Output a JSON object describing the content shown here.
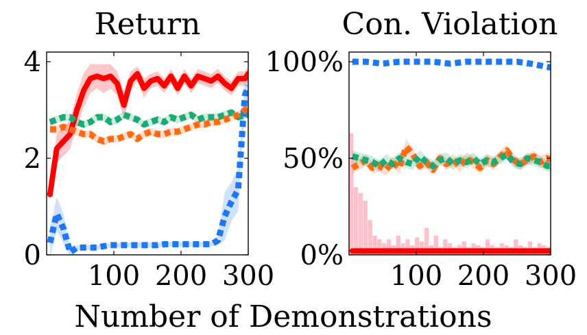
{
  "figure": {
    "xlabel": "Number of Demonstrations"
  },
  "chart_data": [
    {
      "type": "line",
      "title": "Return",
      "xlim": [
        0,
        300
      ],
      "ylim": [
        0,
        4.2
      ],
      "xticks": [
        100,
        200,
        300
      ],
      "yticks": [
        0,
        2,
        4
      ],
      "xtick_labels": [
        "100",
        "200",
        "300"
      ],
      "ytick_labels": [
        "0",
        "2",
        "4"
      ],
      "grid": false,
      "series": [
        {
          "color": "#ff0000",
          "style": "solid",
          "x": [
            5,
            15,
            25,
            35,
            45,
            55,
            65,
            75,
            85,
            95,
            105,
            115,
            125,
            135,
            145,
            155,
            165,
            175,
            185,
            195,
            205,
            215,
            225,
            235,
            245,
            255,
            265,
            275,
            285,
            295,
            300
          ],
          "y": [
            1.25,
            2.2,
            2.35,
            2.5,
            3.0,
            3.4,
            3.65,
            3.7,
            3.65,
            3.7,
            3.55,
            3.1,
            3.6,
            3.75,
            3.45,
            3.6,
            3.65,
            3.5,
            3.7,
            3.45,
            3.7,
            3.5,
            3.7,
            3.65,
            3.6,
            3.7,
            3.55,
            3.45,
            3.65,
            3.65,
            3.75
          ],
          "band": [
            0.15,
            0.3,
            0.3,
            0.3,
            0.35,
            0.35,
            0.3,
            0.25,
            0.3,
            0.25,
            0.25,
            0.3,
            0.2,
            0.15,
            0.2,
            0.15,
            0.15,
            0.15,
            0.15,
            0.15,
            0.15,
            0.15,
            0.15,
            0.15,
            0.15,
            0.15,
            0.15,
            0.15,
            0.15,
            0.15,
            0.15
          ]
        },
        {
          "color": "#1f77f4",
          "style": "dotted",
          "x": [
            5,
            15,
            25,
            35,
            45,
            55,
            65,
            75,
            85,
            95,
            105,
            115,
            125,
            135,
            145,
            155,
            165,
            175,
            185,
            195,
            205,
            215,
            225,
            235,
            245,
            255,
            265,
            275,
            285,
            295,
            300
          ],
          "y": [
            0.25,
            0.85,
            0.55,
            0.05,
            0.15,
            0.15,
            0.15,
            0.15,
            0.18,
            0.2,
            0.2,
            0.2,
            0.2,
            0.2,
            0.2,
            0.2,
            0.2,
            0.22,
            0.22,
            0.22,
            0.22,
            0.22,
            0.22,
            0.22,
            0.22,
            0.3,
            0.8,
            1.1,
            1.35,
            3.3,
            3.5
          ],
          "band": [
            0.3,
            0.35,
            0.3,
            0.1,
            0.05,
            0.05,
            0.05,
            0.05,
            0.05,
            0.05,
            0.05,
            0.05,
            0.05,
            0.05,
            0.05,
            0.05,
            0.05,
            0.05,
            0.05,
            0.05,
            0.05,
            0.05,
            0.05,
            0.05,
            0.05,
            0.1,
            0.5,
            0.4,
            0.45,
            0.3,
            0.3
          ]
        },
        {
          "color": "#1aaa72",
          "style": "dotted",
          "x": [
            5,
            15,
            25,
            35,
            45,
            55,
            65,
            75,
            85,
            95,
            105,
            115,
            125,
            135,
            145,
            155,
            165,
            175,
            185,
            195,
            205,
            215,
            225,
            235,
            245,
            255,
            265,
            275,
            285,
            295,
            300
          ],
          "y": [
            2.75,
            2.8,
            2.85,
            2.85,
            2.75,
            2.7,
            2.75,
            2.85,
            2.85,
            2.75,
            2.8,
            2.9,
            2.85,
            2.8,
            2.7,
            2.75,
            2.8,
            2.75,
            2.85,
            2.8,
            2.85,
            2.9,
            2.8,
            2.85,
            2.85,
            2.85,
            2.9,
            2.95,
            2.85,
            2.9,
            2.9
          ],
          "band": [
            0.08,
            0.08,
            0.08,
            0.08,
            0.08,
            0.08,
            0.08,
            0.08,
            0.08,
            0.08,
            0.08,
            0.08,
            0.08,
            0.08,
            0.08,
            0.08,
            0.08,
            0.08,
            0.08,
            0.08,
            0.08,
            0.08,
            0.08,
            0.08,
            0.08,
            0.08,
            0.08,
            0.08,
            0.08,
            0.08,
            0.08
          ]
        },
        {
          "color": "#ff6a13",
          "style": "dotted",
          "x": [
            5,
            15,
            25,
            35,
            45,
            55,
            65,
            75,
            85,
            95,
            105,
            115,
            125,
            135,
            145,
            155,
            165,
            175,
            185,
            195,
            205,
            215,
            225,
            235,
            245,
            255,
            265,
            275,
            285,
            295,
            300
          ],
          "y": [
            2.6,
            2.6,
            2.65,
            2.6,
            2.55,
            2.5,
            2.5,
            2.4,
            2.35,
            2.4,
            2.4,
            2.45,
            2.5,
            2.4,
            2.5,
            2.55,
            2.5,
            2.5,
            2.55,
            2.55,
            2.6,
            2.65,
            2.7,
            2.7,
            2.75,
            2.75,
            2.8,
            2.85,
            2.9,
            3.0,
            3.05
          ],
          "band": [
            0.08,
            0.08,
            0.08,
            0.08,
            0.08,
            0.08,
            0.08,
            0.08,
            0.08,
            0.08,
            0.08,
            0.08,
            0.08,
            0.08,
            0.08,
            0.08,
            0.08,
            0.08,
            0.08,
            0.08,
            0.08,
            0.08,
            0.08,
            0.08,
            0.08,
            0.08,
            0.08,
            0.08,
            0.08,
            0.08,
            0.08
          ]
        }
      ]
    },
    {
      "type": "line",
      "title": "Con. Violation",
      "xlim": [
        0,
        300
      ],
      "ylim": [
        0,
        105
      ],
      "xticks": [
        100,
        200,
        300
      ],
      "yticks": [
        0,
        50,
        100
      ],
      "xtick_labels": [
        "100",
        "200",
        "300"
      ],
      "ytick_labels": [
        "0%",
        "50%",
        "100%"
      ],
      "grid": false,
      "histogram": {
        "color": "#ffc0cb",
        "bin_width": 7,
        "x": [
          0,
          7,
          14,
          21,
          28,
          35,
          42,
          49,
          56,
          63,
          70,
          77,
          84,
          91,
          98,
          105,
          112,
          119,
          126,
          133,
          140,
          147,
          154,
          161,
          168,
          175,
          182,
          189,
          196,
          203,
          210,
          217,
          224,
          231,
          238,
          245,
          252,
          259,
          266,
          273,
          280,
          287,
          294
        ],
        "y": [
          63,
          35,
          32,
          28,
          18,
          10,
          8,
          6,
          8,
          5,
          10,
          6,
          8,
          5,
          9,
          7,
          14,
          5,
          10,
          4,
          8,
          6,
          4,
          5,
          7,
          4,
          6,
          5,
          4,
          8,
          5,
          4,
          6,
          5,
          4,
          8,
          5,
          4,
          7,
          4,
          6,
          5,
          4
        ]
      },
      "series": [
        {
          "color": "#1f77f4",
          "style": "dotted",
          "x": [
            5,
            25,
            50,
            75,
            100,
            125,
            150,
            175,
            200,
            225,
            250,
            270,
            285,
            300
          ],
          "y": [
            100,
            100,
            99,
            100,
            100,
            100,
            99,
            100,
            100,
            100,
            100,
            99,
            98,
            97
          ]
        },
        {
          "color": "#ff6a13",
          "style": "dotted",
          "x": [
            5,
            15,
            25,
            35,
            45,
            55,
            65,
            75,
            85,
            95,
            105,
            115,
            125,
            135,
            145,
            155,
            165,
            175,
            185,
            195,
            205,
            215,
            225,
            235,
            245,
            255,
            265,
            275,
            285,
            295,
            300
          ],
          "y": [
            45,
            47,
            49,
            45,
            46,
            44,
            48,
            45,
            56,
            52,
            46,
            48,
            44,
            50,
            47,
            49,
            46,
            50,
            48,
            45,
            49,
            47,
            51,
            54,
            49,
            47,
            49,
            51,
            48,
            50,
            49
          ],
          "band": [
            3,
            3,
            3,
            3,
            3,
            3,
            3,
            3,
            4,
            3,
            3,
            3,
            3,
            3,
            3,
            3,
            3,
            3,
            3,
            3,
            3,
            3,
            3,
            3,
            3,
            3,
            3,
            3,
            3,
            3,
            3
          ]
        },
        {
          "color": "#1aaa72",
          "style": "dotted",
          "x": [
            5,
            15,
            25,
            35,
            45,
            55,
            65,
            75,
            85,
            95,
            105,
            115,
            125,
            135,
            145,
            155,
            165,
            175,
            185,
            195,
            205,
            215,
            225,
            235,
            245,
            255,
            265,
            275,
            285,
            295,
            300
          ],
          "y": [
            51,
            50,
            49,
            48,
            46,
            49,
            47,
            50,
            48,
            47,
            51,
            48,
            46,
            49,
            50,
            47,
            49,
            48,
            50,
            47,
            49,
            48,
            50,
            52,
            48,
            47,
            50,
            49,
            48,
            46,
            46
          ],
          "band": [
            3,
            3,
            3,
            3,
            3,
            3,
            3,
            3,
            3,
            3,
            3,
            3,
            3,
            3,
            3,
            3,
            3,
            3,
            3,
            3,
            3,
            3,
            3,
            3,
            3,
            3,
            3,
            3,
            3,
            3,
            3
          ]
        },
        {
          "color": "#ff0000",
          "style": "solid",
          "x": [
            5,
            300
          ],
          "y": [
            2,
            2
          ]
        }
      ]
    }
  ]
}
